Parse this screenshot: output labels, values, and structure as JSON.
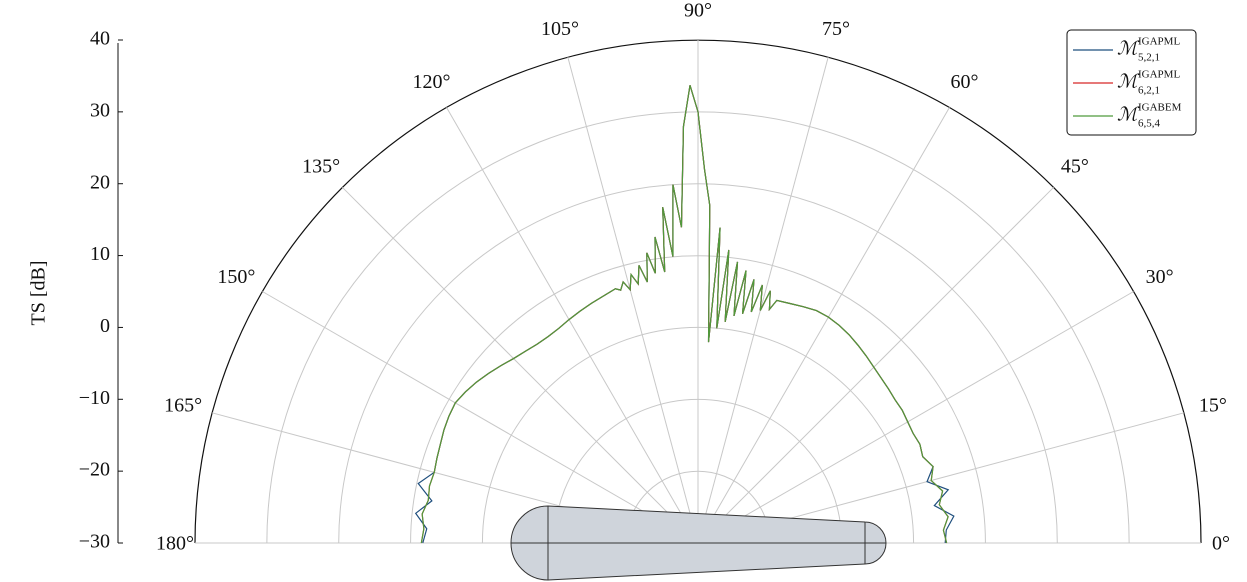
{
  "chart_data": {
    "type": "polar-line",
    "ylabel": "TS [dB]",
    "ylim": [
      -30,
      40
    ],
    "yticks": [
      {
        "value": -30,
        "label": "−30"
      },
      {
        "value": -20,
        "label": "−20"
      },
      {
        "value": -10,
        "label": "−10"
      },
      0,
      10,
      20,
      30,
      40
    ],
    "thetalim": [
      0,
      180
    ],
    "thetaticks": [
      {
        "value": 0,
        "label": "0°"
      },
      {
        "value": 15,
        "label": "15°"
      },
      {
        "value": 30,
        "label": "30°"
      },
      {
        "value": 45,
        "label": "45°"
      },
      {
        "value": 60,
        "label": "60°"
      },
      {
        "value": 75,
        "label": "75°"
      },
      {
        "value": 90,
        "label": "90°"
      },
      {
        "value": 105,
        "label": "105°"
      },
      {
        "value": 120,
        "label": "120°"
      },
      {
        "value": 135,
        "label": "135°"
      },
      {
        "value": 150,
        "label": "150°"
      },
      {
        "value": 165,
        "label": "165°"
      },
      {
        "value": 180,
        "label": "180°"
      }
    ],
    "grid": true,
    "legend": "upper right",
    "x": [
      0,
      3,
      6,
      9,
      12,
      15,
      18,
      21,
      24,
      27,
      30,
      33,
      36,
      39,
      42,
      45,
      48,
      51,
      54,
      57,
      60,
      63,
      66,
      69,
      72,
      73,
      74,
      75,
      76,
      77,
      78,
      79,
      80,
      81,
      82,
      83,
      84,
      85,
      86,
      87,
      88,
      89,
      90,
      91,
      92,
      93,
      94,
      95,
      96,
      97,
      98,
      99,
      100,
      101,
      102,
      103,
      104,
      105,
      106,
      107,
      108,
      111,
      114,
      117,
      120,
      123,
      126,
      129,
      132,
      135,
      138,
      141,
      144,
      147,
      150,
      153,
      156,
      159,
      162,
      165,
      168,
      171,
      174,
      177,
      180
    ],
    "series": [
      {
        "name": "ℳ",
        "superscript": "IGAPML",
        "subscript": "5,2,1",
        "color": "#1f4f7e",
        "values": [
          4.4,
          4.6,
          5.8,
          3.3,
          5.6,
          3.0,
          4.4,
          3.5,
          3.8,
          3.6,
          3.7,
          3.9,
          3.9,
          4.1,
          4.3,
          4.6,
          5.0,
          5.4,
          5.8,
          6.1,
          6.3,
          6.3,
          6.0,
          5.7,
          5.5,
          4.0,
          6.5,
          3.5,
          7.0,
          3.0,
          7.5,
          2.5,
          8.5,
          2.0,
          9.5,
          1.0,
          11,
          0,
          14,
          -2,
          17,
          22,
          30,
          33.7,
          28,
          14,
          20,
          10,
          17,
          8,
          13,
          8,
          11,
          7,
          9.5,
          7,
          8.5,
          6.5,
          7.8,
          6.8,
          7.2,
          6.8,
          6.5,
          6.2,
          5.9,
          5.6,
          5.5,
          5.6,
          5.9,
          6.3,
          6.9,
          7.5,
          8.1,
          8.6,
          9.0,
          8.9,
          8.7,
          8.4,
          8.2,
          8.0,
          9.8,
          7.5,
          9.5,
          7.8,
          8.3
        ]
      },
      {
        "name": "ℳ",
        "superscript": "IGAPML",
        "subscript": "6,2,1",
        "color": "#d62728",
        "values": [
          4.6,
          4.2,
          5.0,
          4.0,
          4.8,
          3.6,
          4.4,
          3.5,
          3.8,
          3.6,
          3.7,
          3.9,
          3.9,
          4.1,
          4.3,
          4.6,
          5.0,
          5.4,
          5.8,
          6.1,
          6.3,
          6.3,
          6.0,
          5.7,
          5.5,
          4.0,
          6.5,
          3.5,
          7.0,
          3.0,
          7.5,
          2.5,
          8.5,
          2.0,
          9.5,
          1.0,
          11,
          0,
          14,
          -2,
          17,
          22,
          30,
          33.7,
          28,
          14,
          20,
          10,
          17,
          8,
          13,
          8,
          11,
          7,
          9.5,
          7,
          8.5,
          6.5,
          7.8,
          6.8,
          7.2,
          6.8,
          6.5,
          6.2,
          5.9,
          5.6,
          5.5,
          5.6,
          5.9,
          6.3,
          6.9,
          7.5,
          8.1,
          8.6,
          9.0,
          8.9,
          8.7,
          8.4,
          8.2,
          8.0,
          8.2,
          8.0,
          8.6,
          8.2,
          8.5
        ]
      },
      {
        "name": "ℳ",
        "superscript": "IGABEM",
        "subscript": "6,5,4",
        "color": "#4f9a3c",
        "values": [
          4.6,
          4.2,
          5.0,
          4.0,
          4.8,
          3.6,
          4.4,
          3.5,
          3.8,
          3.6,
          3.7,
          3.9,
          3.9,
          4.1,
          4.3,
          4.6,
          5.0,
          5.4,
          5.8,
          6.1,
          6.3,
          6.3,
          6.0,
          5.7,
          5.5,
          4.0,
          6.5,
          3.5,
          7.0,
          3.0,
          7.5,
          2.5,
          8.5,
          2.0,
          9.5,
          1.0,
          11,
          0,
          14,
          -2,
          17,
          22,
          30,
          33.7,
          28,
          14,
          20,
          10,
          17,
          8,
          13,
          8,
          11,
          7,
          9.5,
          7,
          8.5,
          6.5,
          7.8,
          6.8,
          7.2,
          6.8,
          6.5,
          6.2,
          5.9,
          5.6,
          5.5,
          5.6,
          5.9,
          6.3,
          6.9,
          7.5,
          8.1,
          8.6,
          9.0,
          8.9,
          8.7,
          8.4,
          8.2,
          8.0,
          8.2,
          8.0,
          8.6,
          8.2,
          8.5
        ]
      }
    ]
  }
}
